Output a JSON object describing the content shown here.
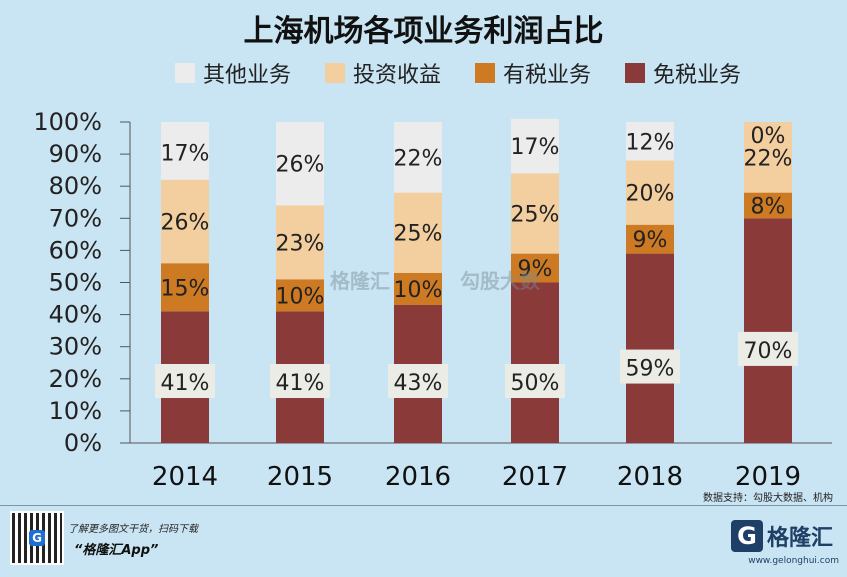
{
  "chart_data": {
    "type": "bar",
    "stacked": true,
    "title": "上海机场各项业务利润占比",
    "categories": [
      "2014",
      "2015",
      "2016",
      "2017",
      "2018",
      "2019"
    ],
    "series": [
      {
        "name": "免税业务",
        "color": "#8b3a3a",
        "values": [
          41,
          41,
          43,
          50,
          59,
          70
        ],
        "labels": [
          "41%",
          "41%",
          "43%",
          "50%",
          "59%",
          "70%"
        ]
      },
      {
        "name": "有税业务",
        "color": "#cd7a22",
        "values": [
          15,
          10,
          10,
          9,
          9,
          8
        ],
        "labels": [
          "15%",
          "10%",
          "10%",
          "9%",
          "9%",
          "8%"
        ]
      },
      {
        "name": "投资收益",
        "color": "#f3cfa0",
        "values": [
          26,
          23,
          25,
          25,
          20,
          22
        ],
        "labels": [
          "26%",
          "23%",
          "25%",
          "25%",
          "20%",
          "22%"
        ]
      },
      {
        "name": "其他业务",
        "color": "#ececec",
        "values": [
          17,
          26,
          22,
          17,
          12,
          0
        ],
        "labels": [
          "17%",
          "26%",
          "22%",
          "17%",
          "12%",
          "0%"
        ]
      }
    ],
    "legend_order": [
      "其他业务",
      "投资收益",
      "有税业务",
      "免税业务"
    ],
    "ylim": [
      0,
      100
    ],
    "yticks": [
      "0%",
      "10%",
      "20%",
      "30%",
      "40%",
      "50%",
      "60%",
      "70%",
      "80%",
      "90%",
      "100%"
    ],
    "legend": "top",
    "grid": false
  },
  "source": "数据支持：勾股大数据、机构",
  "promo": {
    "line1": "了解更多图文干货，扫码下载",
    "line2": "“格隆汇App”"
  },
  "brand": {
    "name": "格隆汇",
    "url": "www.gelonghui.com",
    "logo_letter": "G"
  },
  "watermarks": [
    "格隆汇",
    "勾股大数"
  ]
}
